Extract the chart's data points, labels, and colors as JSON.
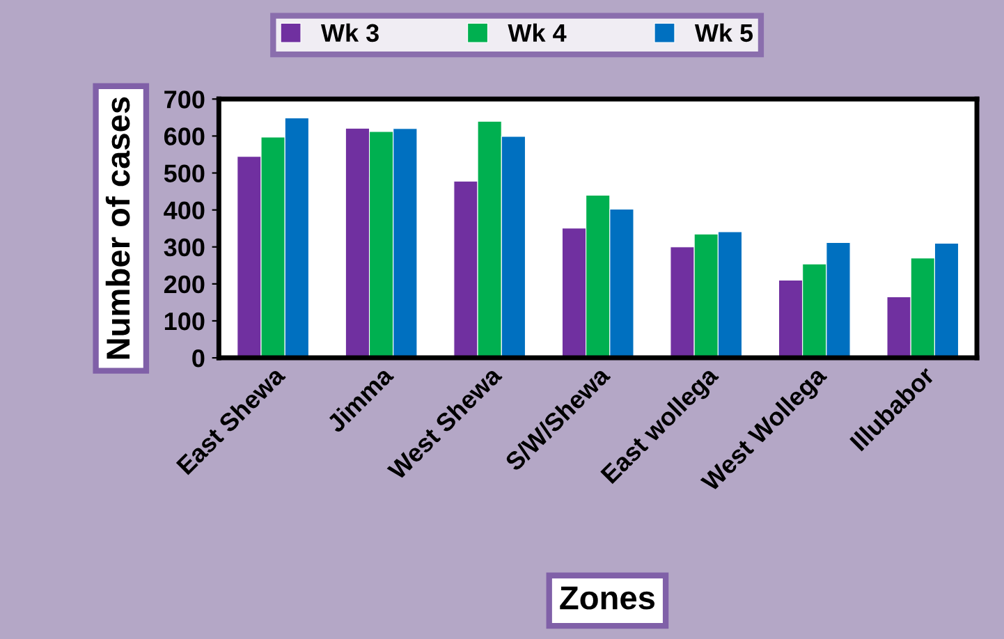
{
  "chart_data": {
    "type": "bar",
    "xlabel": "Zones",
    "ylabel": "Number of cases",
    "categories": [
      "East Shewa",
      "Jimma",
      "West Shewa",
      "S/W/Shewa",
      "East wollega",
      "West Wollega",
      "Illubabor"
    ],
    "series": [
      {
        "name": "Wk 3",
        "color": "#7030a0",
        "values": [
          545,
          621,
          478,
          351,
          300,
          210,
          165
        ]
      },
      {
        "name": "Wk 4",
        "color": "#00b050",
        "values": [
          597,
          612,
          640,
          440,
          335,
          254,
          270
        ]
      },
      {
        "name": "Wk 5",
        "color": "#0070c0",
        "values": [
          649,
          620,
          599,
          402,
          341,
          312,
          310
        ]
      }
    ],
    "ylim": [
      0,
      700
    ],
    "yticks": [
      0,
      100,
      200,
      300,
      400,
      500,
      600,
      700
    ],
    "grid": false,
    "legend": "top"
  }
}
